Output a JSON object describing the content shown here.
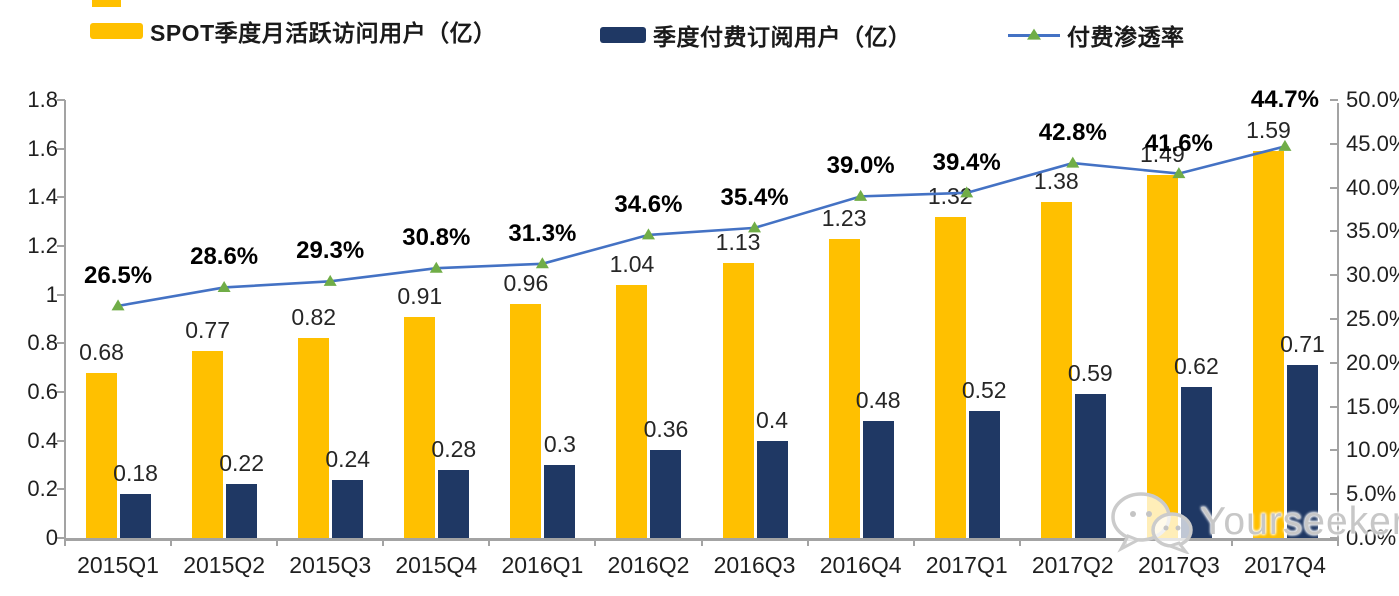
{
  "legend": [
    {
      "label": "SPOT季度月活跃访问用户（亿）",
      "swatch_color": "#FFC000"
    },
    {
      "label": "季度付费订阅用户（亿）",
      "swatch_color": "#1F3864"
    },
    {
      "label": "付费渗透率",
      "line_color": "#4472C4",
      "marker_color": "#70AD47",
      "marker": "triangle"
    }
  ],
  "watermark": {
    "text": "Yourseeker",
    "icon": "wechat-icon"
  },
  "colors": {
    "mau_bar": "#FFC000",
    "subscriber_bar": "#1F3864",
    "penetration_line": "#4472C4",
    "penetration_marker": "#70AD47",
    "axis": "#a3a3a3"
  },
  "chart_data": {
    "type": "bar",
    "subtype": "grouped bars with secondary-axis line (combo)",
    "categories": [
      "2015Q1",
      "2015Q2",
      "2015Q3",
      "2015Q4",
      "2016Q1",
      "2016Q2",
      "2016Q3",
      "2016Q4",
      "2017Q1",
      "2017Q2",
      "2017Q3",
      "2017Q4"
    ],
    "series": [
      {
        "name": "SPOT季度月活跃访问用户（亿）",
        "type": "bar",
        "axis": "left",
        "color": "#FFC000",
        "values": [
          0.68,
          0.77,
          0.82,
          0.91,
          0.96,
          1.04,
          1.13,
          1.23,
          1.32,
          1.38,
          1.49,
          1.59
        ],
        "value_labels": [
          "0.68",
          "0.77",
          "0.82",
          "0.91",
          "0.96",
          "1.04",
          "1.13",
          "1.23",
          "1.32",
          "1.38",
          "1.49",
          "1.59"
        ]
      },
      {
        "name": "季度付费订阅用户（亿）",
        "type": "bar",
        "axis": "left",
        "color": "#1F3864",
        "values": [
          0.18,
          0.22,
          0.24,
          0.28,
          0.3,
          0.36,
          0.4,
          0.48,
          0.52,
          0.59,
          0.62,
          0.71
        ],
        "value_labels": [
          "0.18",
          "0.22",
          "0.24",
          "0.28",
          "0.3",
          "0.36",
          "0.4",
          "0.48",
          "0.52",
          "0.59",
          "0.62",
          "0.71"
        ]
      },
      {
        "name": "付费渗透率",
        "type": "line",
        "axis": "right",
        "color": "#4472C4",
        "marker": "triangle",
        "marker_color": "#70AD47",
        "values": [
          26.5,
          28.6,
          29.3,
          30.8,
          31.3,
          34.6,
          35.4,
          39.0,
          39.4,
          42.8,
          41.6,
          44.7
        ],
        "value_labels": [
          "26.5%",
          "28.6%",
          "29.3%",
          "30.8%",
          "31.3%",
          "34.6%",
          "35.4%",
          "39.0%",
          "39.4%",
          "42.8%",
          "41.6%",
          "44.7%"
        ]
      }
    ],
    "left_axis": {
      "min": 0,
      "max": 1.8,
      "step": 0.2,
      "tick_labels": [
        "0",
        "0.2",
        "0.4",
        "0.6",
        "0.8",
        "1",
        "1.2",
        "1.4",
        "1.6",
        "1.8"
      ]
    },
    "right_axis": {
      "min": 0,
      "max": 50,
      "step": 5,
      "tick_labels": [
        "0.0%",
        "5.0%",
        "10.0%",
        "15.0%",
        "20.0%",
        "25.0%",
        "30.0%",
        "35.0%",
        "40.0%",
        "45.0%",
        "50.0%"
      ]
    },
    "title": "",
    "xlabel": "",
    "ylabel": "",
    "grid": false,
    "legend_position": "top"
  }
}
